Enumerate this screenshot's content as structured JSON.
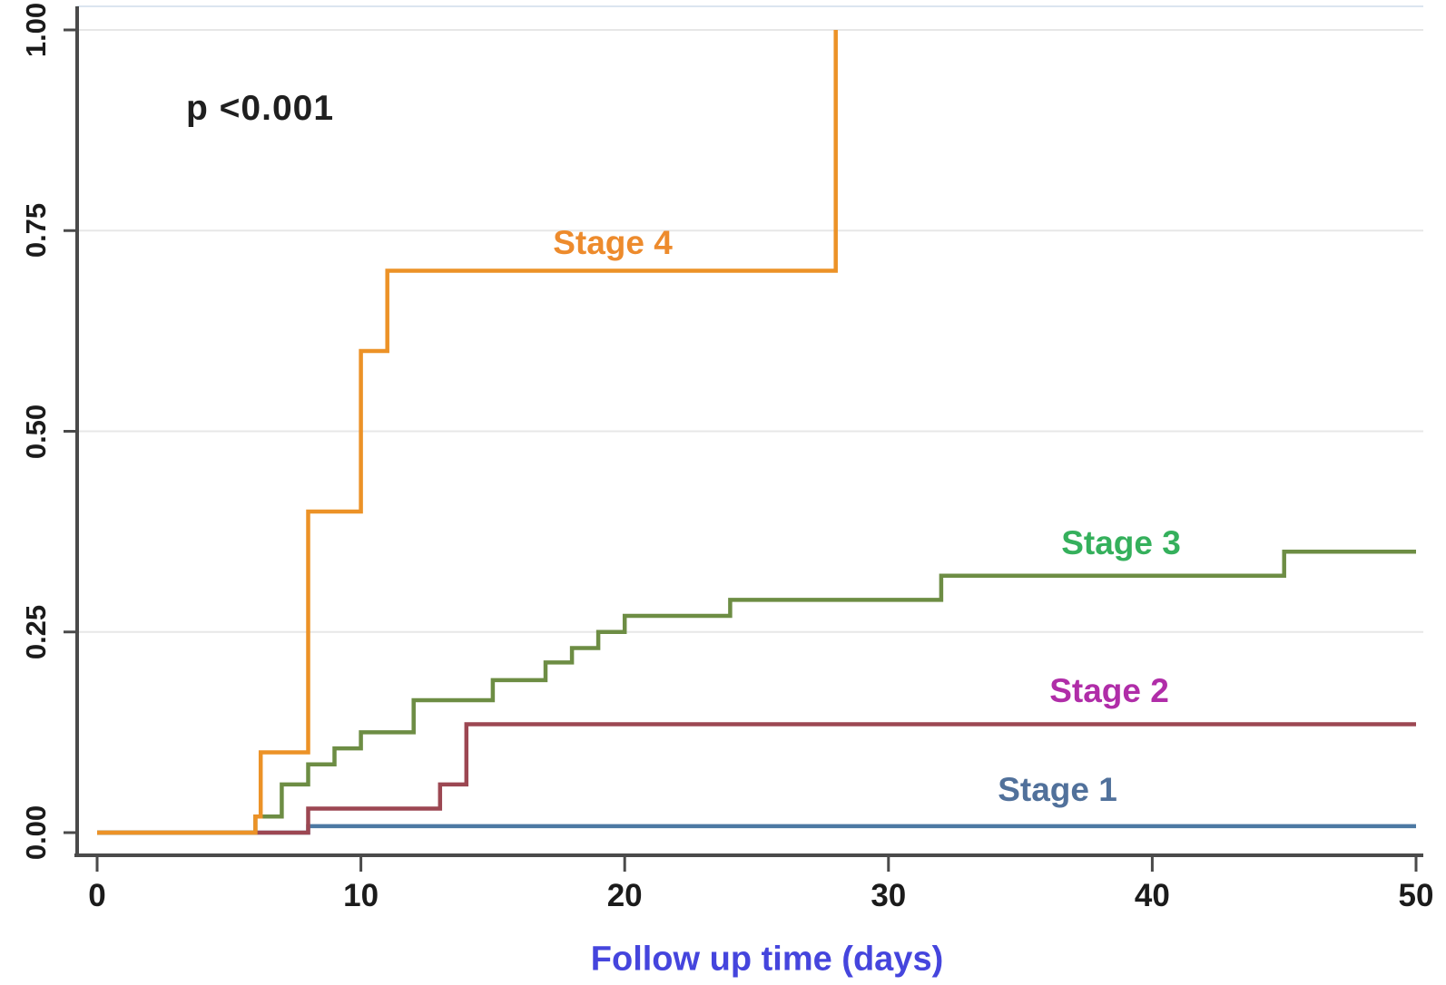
{
  "chart_data": {
    "type": "line",
    "subtype": "step-after",
    "title": "",
    "xlabel": "Follow up time (days)",
    "ylabel": "",
    "annotation": "p <0.001",
    "xlim": [
      0,
      50
    ],
    "ylim": [
      0.0,
      1.0
    ],
    "x_ticks": [
      0,
      10,
      20,
      30,
      40,
      50
    ],
    "y_ticks": [
      "0.00",
      "0.25",
      "0.50",
      "0.75",
      "1.00"
    ],
    "y_tick_values": [
      0,
      0.25,
      0.5,
      0.75,
      1.0
    ],
    "grid": "horizontal",
    "legend_position": "inline-labels",
    "colors": {
      "grid": "#e7e7e7",
      "plot_top_border": "#dbe5f0",
      "axis": "#4a4a4a",
      "tick_text": "#1b1b1b",
      "x_title": "#4545dd",
      "annotation_text": "#1f1f1f"
    },
    "series": [
      {
        "name": "Stage 1",
        "line_color": "#4c79a3",
        "label_color": "#51719b",
        "points": [
          [
            0,
            0
          ],
          [
            8,
            0.008
          ],
          [
            50,
            0.008
          ]
        ]
      },
      {
        "name": "Stage 2",
        "line_color": "#9c4752",
        "label_color": "#b02da8",
        "points": [
          [
            0,
            0
          ],
          [
            8,
            0.03
          ],
          [
            13,
            0.06
          ],
          [
            14,
            0.135
          ],
          [
            50,
            0.135
          ]
        ]
      },
      {
        "name": "Stage 3",
        "line_color": "#6d8d44",
        "label_color": "#35b05c",
        "points": [
          [
            0,
            0
          ],
          [
            6,
            0.02
          ],
          [
            7,
            0.06
          ],
          [
            8,
            0.085
          ],
          [
            9,
            0.105
          ],
          [
            10,
            0.125
          ],
          [
            12,
            0.165
          ],
          [
            15,
            0.19
          ],
          [
            17,
            0.212
          ],
          [
            18,
            0.23
          ],
          [
            19,
            0.25
          ],
          [
            20,
            0.27
          ],
          [
            24,
            0.29
          ],
          [
            32,
            0.32
          ],
          [
            45,
            0.35
          ],
          [
            50,
            0.35
          ]
        ]
      },
      {
        "name": "Stage 4",
        "line_color": "#ec9227",
        "label_color": "#ed8b2d",
        "points": [
          [
            0,
            0
          ],
          [
            6,
            0.02
          ],
          [
            6.2,
            0.1
          ],
          [
            8,
            0.4
          ],
          [
            10,
            0.6
          ],
          [
            11,
            0.7
          ],
          [
            28,
            1.0
          ]
        ]
      }
    ]
  }
}
